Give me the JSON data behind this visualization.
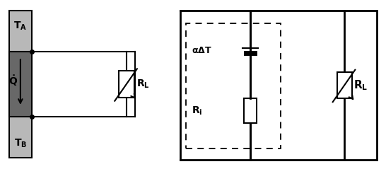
{
  "bg_color": "#ffffff",
  "line_color": "#000000",
  "slab_outer_color": "#b8b8b8",
  "slab_inner_color": "#686868",
  "fig_width": 5.46,
  "fig_height": 2.39,
  "dpi": 100
}
